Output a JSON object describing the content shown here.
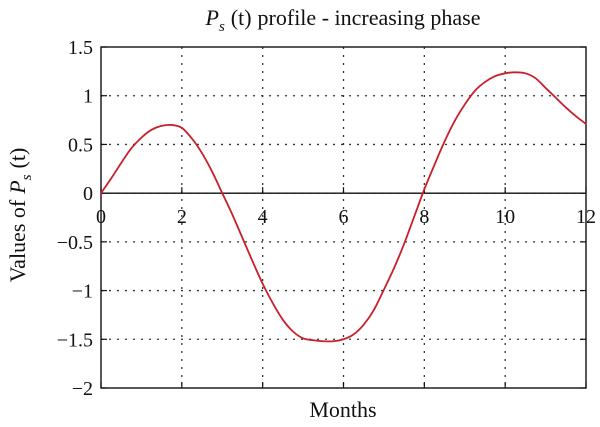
{
  "chart_data": {
    "type": "line",
    "title": {
      "symbol": "P",
      "subscript": "s",
      "argument": "(t)",
      "text": "profile - increasing phase"
    },
    "xlabel": "Months",
    "ylabel": {
      "prefix": "Values of",
      "symbol": "P",
      "subscript": "s",
      "argument": "(t)"
    },
    "xlim": [
      0,
      12
    ],
    "ylim": [
      -2,
      1.5
    ],
    "x_ticks": [
      {
        "value": 0,
        "label": "0"
      },
      {
        "value": 2,
        "label": "2"
      },
      {
        "value": 4,
        "label": "4"
      },
      {
        "value": 6,
        "label": "6"
      },
      {
        "value": 8,
        "label": "8"
      },
      {
        "value": 10,
        "label": "10"
      },
      {
        "value": 12,
        "label": "12"
      }
    ],
    "y_ticks": [
      {
        "value": 1.5,
        "label": "1.5"
      },
      {
        "value": 1,
        "label": "1"
      },
      {
        "value": 0.5,
        "label": "0.5"
      },
      {
        "value": 0,
        "label": "0"
      },
      {
        "value": -0.5,
        "label": "−0.5"
      },
      {
        "value": -1,
        "label": "−1"
      },
      {
        "value": -1.5,
        "label": "−1.5"
      },
      {
        "value": -2,
        "label": "−2"
      }
    ],
    "grid": true,
    "zero_line": true,
    "series": [
      {
        "color": "#c8202a",
        "x": [
          0,
          0.25,
          0.5,
          0.75,
          1,
          1.25,
          1.5,
          1.75,
          2,
          2.25,
          2.5,
          2.75,
          3,
          3.25,
          3.5,
          3.75,
          4,
          4.25,
          4.5,
          4.75,
          5,
          5.25,
          5.5,
          5.75,
          6,
          6.25,
          6.5,
          6.75,
          7,
          7.25,
          7.5,
          7.75,
          8,
          8.25,
          8.5,
          8.75,
          9,
          9.25,
          9.5,
          9.75,
          10,
          10.25,
          10.5,
          10.75,
          11,
          11.25,
          11.5,
          11.75,
          12
        ],
        "y": [
          0.0,
          0.15,
          0.31,
          0.46,
          0.57,
          0.65,
          0.69,
          0.7,
          0.67,
          0.56,
          0.41,
          0.22,
          0.0,
          -0.22,
          -0.46,
          -0.7,
          -0.93,
          -1.13,
          -1.3,
          -1.42,
          -1.49,
          -1.51,
          -1.52,
          -1.52,
          -1.5,
          -1.45,
          -1.35,
          -1.2,
          -0.99,
          -0.77,
          -0.52,
          -0.24,
          0.04,
          0.29,
          0.53,
          0.74,
          0.91,
          1.05,
          1.14,
          1.2,
          1.23,
          1.24,
          1.23,
          1.18,
          1.08,
          0.98,
          0.88,
          0.79,
          0.71
        ]
      }
    ]
  }
}
